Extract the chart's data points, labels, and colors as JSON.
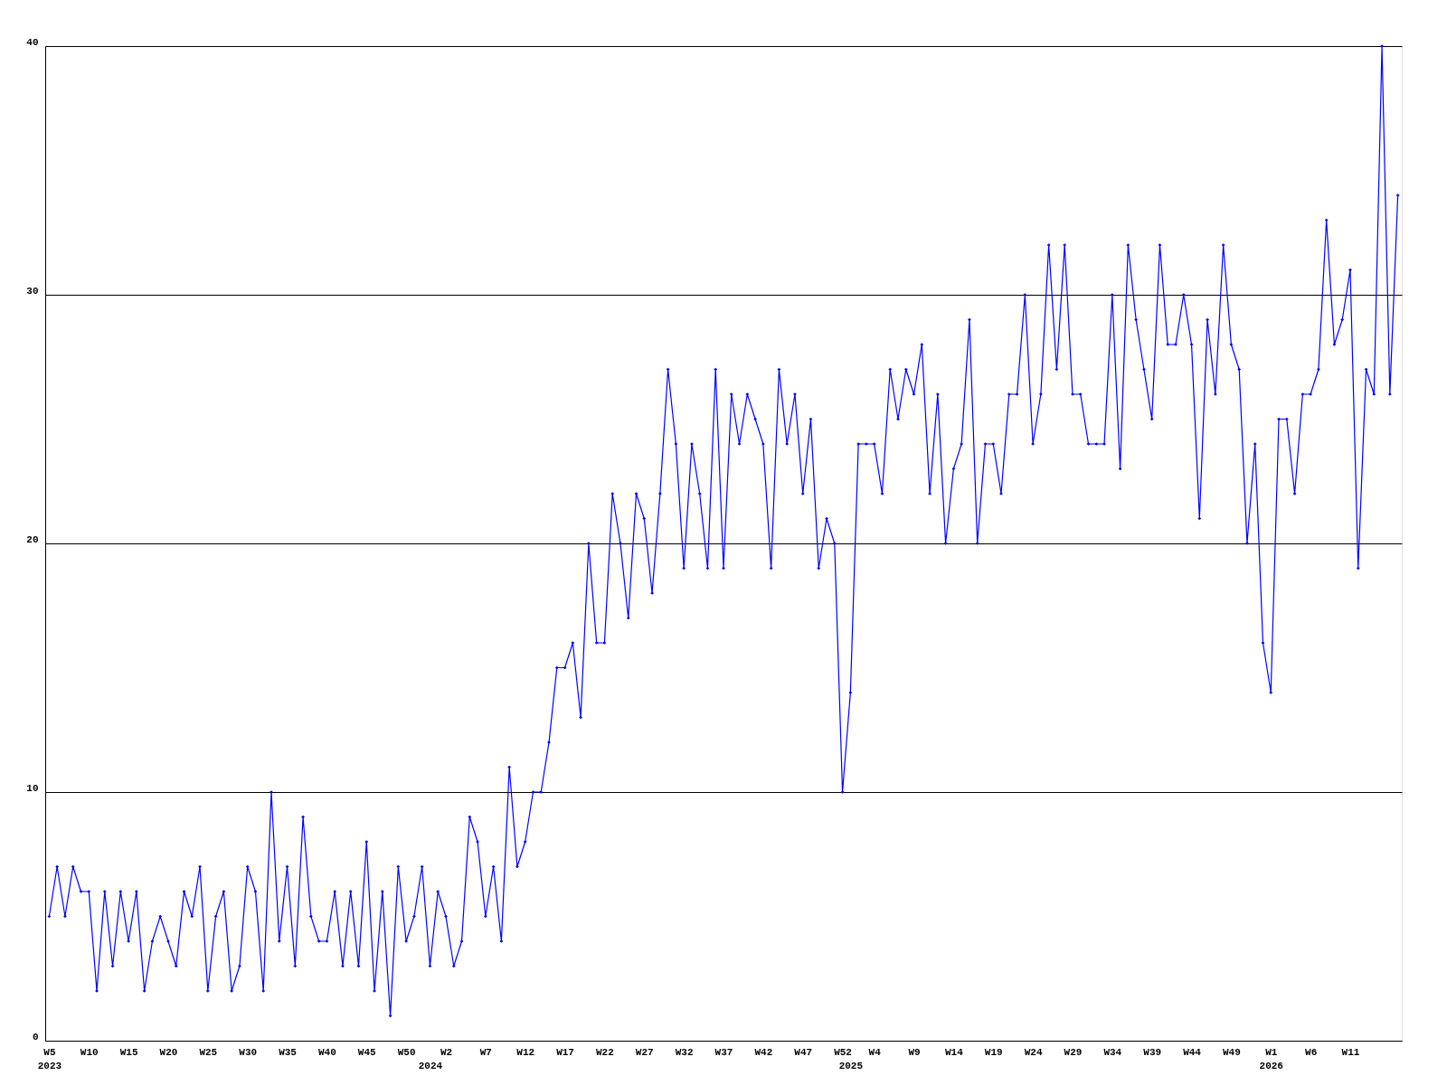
{
  "chart_data": {
    "type": "line",
    "categories": [
      "W5\n2023",
      null,
      null,
      null,
      null,
      "W10",
      null,
      null,
      null,
      null,
      "W15",
      null,
      null,
      null,
      null,
      "W20",
      null,
      null,
      null,
      null,
      "W25",
      null,
      null,
      null,
      null,
      "W30",
      null,
      null,
      null,
      null,
      "W35",
      null,
      null,
      null,
      null,
      "W40",
      null,
      null,
      null,
      null,
      "W45",
      null,
      null,
      null,
      null,
      "W50",
      null,
      null,
      "\n2024",
      null,
      "W2",
      null,
      null,
      null,
      null,
      "W7",
      null,
      null,
      null,
      null,
      "W12",
      null,
      null,
      null,
      null,
      "W17",
      null,
      null,
      null,
      null,
      "W22",
      null,
      null,
      null,
      null,
      "W27",
      null,
      null,
      null,
      null,
      "W32",
      null,
      null,
      null,
      null,
      "W37",
      null,
      null,
      null,
      null,
      "W42",
      null,
      null,
      null,
      null,
      "W47",
      null,
      null,
      null,
      null,
      "W52",
      "\n2025",
      null,
      null,
      "W4",
      null,
      null,
      null,
      null,
      "W9",
      null,
      null,
      null,
      null,
      "W14",
      null,
      null,
      null,
      null,
      "W19",
      null,
      null,
      null,
      null,
      "W24",
      null,
      null,
      null,
      null,
      "W29",
      null,
      null,
      null,
      null,
      "W34",
      null,
      null,
      null,
      null,
      "W39",
      null,
      null,
      null,
      null,
      "W44",
      null,
      null,
      null,
      null,
      "W49",
      null,
      null,
      null,
      null,
      "W1\n2026",
      null,
      null,
      null,
      null,
      "W6",
      null,
      null,
      null,
      null,
      "W11",
      null,
      null,
      null,
      null,
      null,
      null
    ],
    "series": [
      {
        "color": "#0000ff",
        "values": [
          5,
          7,
          5,
          7,
          6,
          6,
          2,
          6,
          3,
          6,
          4,
          6,
          2,
          4,
          5,
          4,
          3,
          6,
          5,
          7,
          2,
          5,
          6,
          2,
          3,
          7,
          6,
          2,
          10,
          4,
          7,
          3,
          9,
          5,
          4,
          4,
          6,
          3,
          6,
          3,
          8,
          2,
          6,
          1,
          7,
          4,
          5,
          7,
          3,
          6,
          5,
          3,
          4,
          9,
          8,
          5,
          7,
          4,
          11,
          7,
          8,
          10,
          10,
          12,
          15,
          15,
          16,
          13,
          20,
          16,
          16,
          22,
          20,
          17,
          22,
          21,
          18,
          22,
          27,
          24,
          19,
          24,
          22,
          19,
          27,
          19,
          26,
          24,
          26,
          25,
          24,
          19,
          27,
          24,
          26,
          22,
          25,
          19,
          21,
          20,
          10,
          14,
          24,
          24,
          24,
          22,
          27,
          25,
          27,
          26,
          28,
          22,
          26,
          20,
          23,
          24,
          29,
          20,
          24,
          24,
          22,
          26,
          26,
          30,
          24,
          26,
          32,
          27,
          32,
          26,
          26,
          24,
          24,
          24,
          30,
          23,
          32,
          29,
          27,
          25,
          32,
          28,
          28,
          30,
          28,
          21,
          29,
          26,
          32,
          28,
          27,
          20,
          24,
          16,
          14,
          25,
          25,
          22,
          26,
          26,
          27,
          33,
          28,
          29,
          31,
          19,
          27,
          26,
          40,
          26,
          34
        ]
      }
    ],
    "ylim": [
      0,
      40
    ],
    "yticks": [
      0,
      10,
      20,
      30,
      40
    ],
    "grid": "y",
    "legend": false,
    "marker": "diamond",
    "line_style": "solid"
  }
}
